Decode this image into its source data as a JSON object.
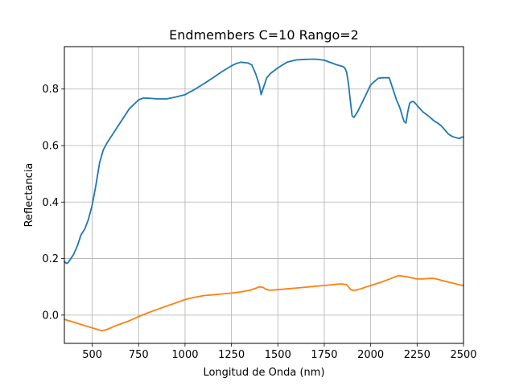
{
  "chart_data": {
    "type": "line",
    "title": "Endmembers C=10 Rango=2",
    "xlabel": "Longitud de Onda (nm)",
    "ylabel": "Reflectancia",
    "xlim": [
      350,
      2500
    ],
    "ylim": [
      -0.1,
      0.95
    ],
    "xticks": [
      500,
      750,
      1000,
      1250,
      1500,
      1750,
      2000,
      2250,
      2500
    ],
    "yticks": [
      0.0,
      0.2,
      0.4,
      0.6,
      0.8
    ],
    "xtick_labels": [
      "500",
      "750",
      "1000",
      "1250",
      "1500",
      "1750",
      "2000",
      "2250",
      "2500"
    ],
    "ytick_labels": [
      "0.0",
      "0.2",
      "0.4",
      "0.6",
      "0.8"
    ],
    "grid": true,
    "legend": "none",
    "series": [
      {
        "color": "#1f77b4",
        "x": [
          350,
          360,
          370,
          380,
          400,
          420,
          440,
          460,
          480,
          500,
          520,
          540,
          560,
          580,
          600,
          650,
          700,
          750,
          775,
          800,
          850,
          900,
          950,
          1000,
          1050,
          1100,
          1150,
          1200,
          1250,
          1275,
          1300,
          1340,
          1360,
          1380,
          1400,
          1410,
          1420,
          1440,
          1460,
          1500,
          1550,
          1600,
          1650,
          1700,
          1750,
          1800,
          1820,
          1850,
          1860,
          1870,
          1880,
          1890,
          1900,
          1910,
          1930,
          1960,
          2000,
          2040,
          2060,
          2080,
          2100,
          2120,
          2140,
          2150,
          2160,
          2170,
          2180,
          2190,
          2200,
          2210,
          2220,
          2230,
          2240,
          2260,
          2280,
          2300,
          2320,
          2340,
          2360,
          2380,
          2400,
          2420,
          2440,
          2460,
          2480,
          2490,
          2500
        ],
        "y": [
          0.19,
          0.183,
          0.185,
          0.195,
          0.215,
          0.245,
          0.285,
          0.305,
          0.34,
          0.39,
          0.46,
          0.54,
          0.585,
          0.61,
          0.63,
          0.68,
          0.73,
          0.762,
          0.768,
          0.768,
          0.765,
          0.765,
          0.772,
          0.78,
          0.798,
          0.818,
          0.84,
          0.862,
          0.882,
          0.89,
          0.895,
          0.892,
          0.885,
          0.855,
          0.815,
          0.78,
          0.8,
          0.84,
          0.855,
          0.875,
          0.895,
          0.903,
          0.905,
          0.906,
          0.902,
          0.89,
          0.885,
          0.88,
          0.875,
          0.86,
          0.82,
          0.76,
          0.705,
          0.7,
          0.72,
          0.76,
          0.815,
          0.838,
          0.84,
          0.84,
          0.84,
          0.8,
          0.76,
          0.745,
          0.728,
          0.705,
          0.685,
          0.68,
          0.72,
          0.75,
          0.755,
          0.756,
          0.75,
          0.735,
          0.72,
          0.71,
          0.7,
          0.688,
          0.68,
          0.67,
          0.655,
          0.64,
          0.632,
          0.628,
          0.625,
          0.63,
          0.63
        ]
      },
      {
        "color": "#ff7f0e",
        "x": [
          350,
          375,
          400,
          425,
          450,
          475,
          500,
          525,
          550,
          575,
          600,
          625,
          650,
          700,
          750,
          800,
          850,
          900,
          950,
          1000,
          1050,
          1100,
          1150,
          1200,
          1250,
          1300,
          1350,
          1380,
          1400,
          1420,
          1440,
          1460,
          1500,
          1550,
          1600,
          1650,
          1700,
          1750,
          1800,
          1830,
          1850,
          1870,
          1880,
          1890,
          1900,
          1920,
          1950,
          2000,
          2050,
          2100,
          2130,
          2150,
          2180,
          2200,
          2220,
          2250,
          2280,
          2300,
          2320,
          2340,
          2360,
          2400,
          2450,
          2480,
          2500
        ],
        "y": [
          -0.015,
          -0.02,
          -0.025,
          -0.03,
          -0.035,
          -0.04,
          -0.045,
          -0.05,
          -0.055,
          -0.052,
          -0.045,
          -0.038,
          -0.032,
          -0.02,
          -0.005,
          0.008,
          0.02,
          0.032,
          0.043,
          0.055,
          0.063,
          0.069,
          0.072,
          0.075,
          0.078,
          0.082,
          0.088,
          0.095,
          0.1,
          0.098,
          0.09,
          0.088,
          0.09,
          0.093,
          0.096,
          0.099,
          0.102,
          0.105,
          0.108,
          0.11,
          0.11,
          0.108,
          0.1,
          0.092,
          0.088,
          0.088,
          0.094,
          0.105,
          0.115,
          0.127,
          0.135,
          0.14,
          0.137,
          0.135,
          0.132,
          0.128,
          0.128,
          0.129,
          0.13,
          0.13,
          0.127,
          0.12,
          0.112,
          0.107,
          0.105
        ]
      }
    ]
  }
}
